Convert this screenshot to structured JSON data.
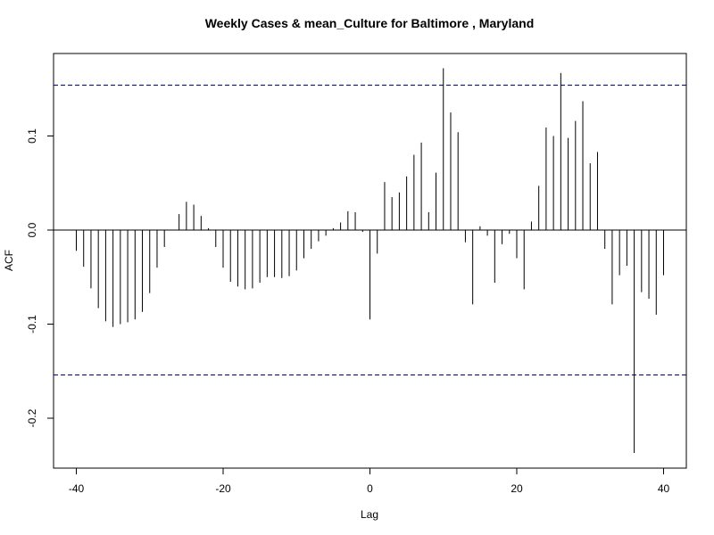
{
  "chart_data": {
    "type": "bar",
    "title": "Weekly Cases & mean_Culture for Baltimore , Maryland",
    "xlabel": "Lag",
    "ylabel": "ACF",
    "xlim": [
      -42,
      43
    ],
    "ylim": [
      -0.25,
      0.19
    ],
    "x_ticks": [
      -40,
      -20,
      0,
      20,
      40
    ],
    "y_ticks": [
      -0.2,
      -0.1,
      0.0,
      0.1
    ],
    "y_tick_labels": [
      "-0.2",
      "-0.1",
      "0.0",
      "0.1"
    ],
    "x_tick_labels": [
      "-40",
      "-20",
      "0",
      "20",
      "40"
    ],
    "confidence_bound": 0.154,
    "grid": false,
    "colors": {
      "bars": "#000000",
      "confidence_lines": "#00008b",
      "zero_line": "#000000"
    },
    "lags": [
      -40,
      -39,
      -38,
      -37,
      -36,
      -35,
      -34,
      -33,
      -32,
      -31,
      -30,
      -29,
      -28,
      -27,
      -26,
      -25,
      -24,
      -23,
      -22,
      -21,
      -20,
      -19,
      -18,
      -17,
      -16,
      -15,
      -14,
      -13,
      -12,
      -11,
      -10,
      -9,
      -8,
      -7,
      -6,
      -5,
      -4,
      -3,
      -2,
      -1,
      0,
      1,
      2,
      3,
      4,
      5,
      6,
      7,
      8,
      9,
      10,
      11,
      12,
      13,
      14,
      15,
      16,
      17,
      18,
      19,
      20,
      21,
      22,
      23,
      24,
      25,
      26,
      27,
      28,
      29,
      30,
      31,
      32,
      33,
      34,
      35,
      36,
      37,
      38,
      39,
      40
    ],
    "values": [
      -0.022,
      -0.039,
      -0.062,
      -0.083,
      -0.097,
      -0.103,
      -0.1,
      -0.098,
      -0.095,
      -0.087,
      -0.067,
      -0.04,
      -0.018,
      0.0,
      0.017,
      0.03,
      0.027,
      0.015,
      0.002,
      -0.018,
      -0.04,
      -0.055,
      -0.06,
      -0.063,
      -0.062,
      -0.056,
      -0.05,
      -0.05,
      -0.051,
      -0.049,
      -0.043,
      -0.03,
      -0.02,
      -0.012,
      -0.006,
      0.002,
      0.008,
      0.02,
      0.019,
      -0.002,
      -0.095,
      -0.025,
      0.051,
      0.035,
      0.04,
      0.057,
      0.08,
      0.093,
      0.019,
      0.061,
      0.172,
      0.125,
      0.104,
      -0.013,
      -0.079,
      0.004,
      -0.006,
      -0.056,
      -0.015,
      -0.004,
      -0.03,
      -0.063,
      0.009,
      0.047,
      0.109,
      0.1,
      0.167,
      0.098,
      0.116,
      0.137,
      0.071,
      0.083,
      -0.02,
      -0.079,
      -0.048,
      -0.038,
      -0.237,
      -0.066,
      -0.073,
      -0.09,
      -0.048
    ]
  }
}
